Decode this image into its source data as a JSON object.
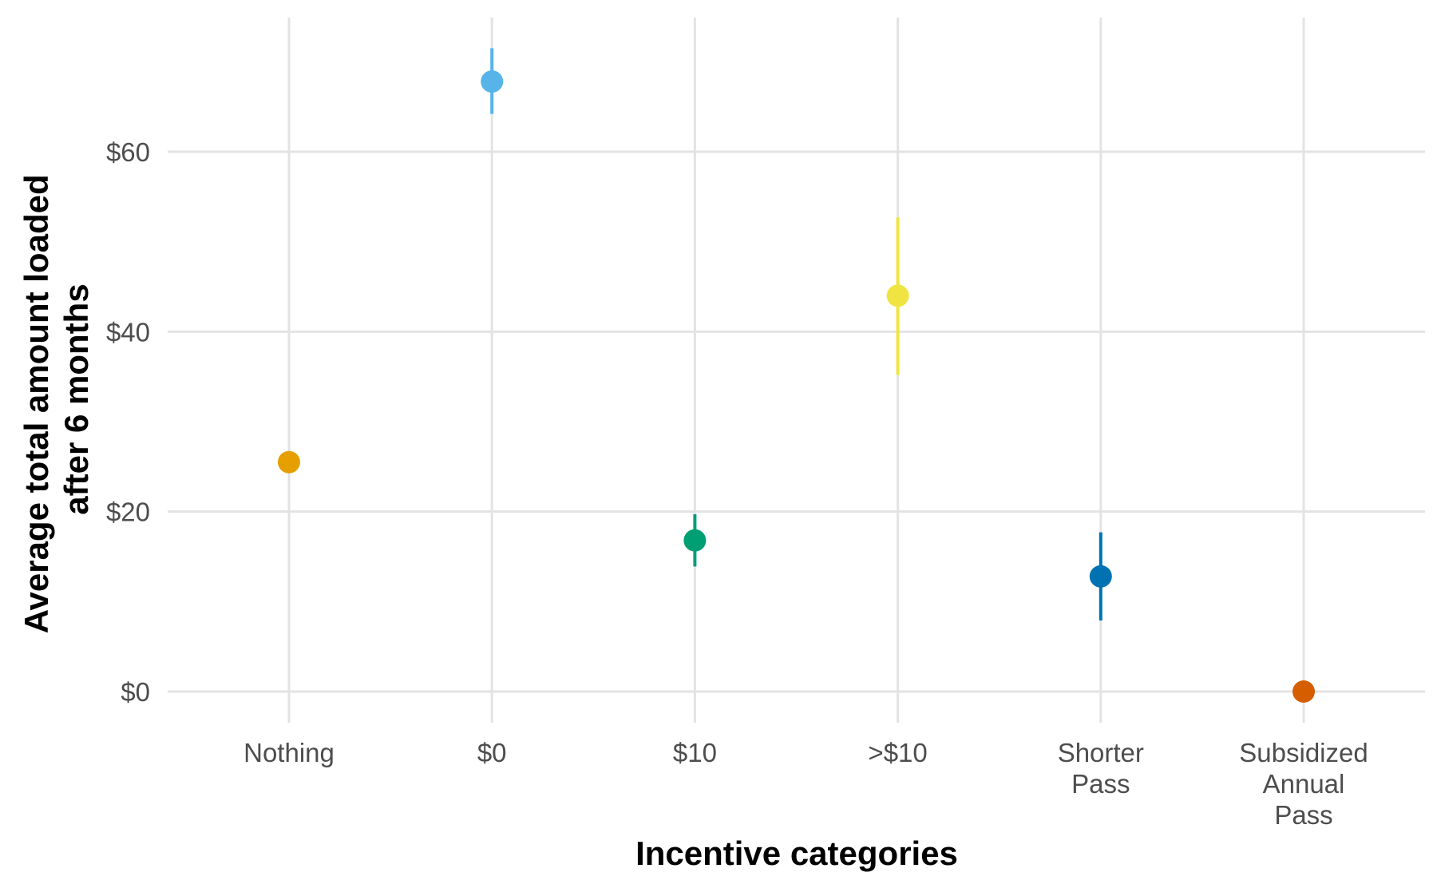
{
  "chart_data": {
    "type": "scatter",
    "title": "",
    "xlabel": "Incentive categories",
    "ylabel_lines": [
      "Average total amount loaded",
      "after 6 months"
    ],
    "categories": [
      [
        "Nothing"
      ],
      [
        "$0"
      ],
      [
        "$10"
      ],
      [
        ">$10"
      ],
      [
        "Shorter",
        "Pass"
      ],
      [
        "Subsidized",
        "Annual",
        "Pass"
      ]
    ],
    "ylim": [
      -3.5,
      75
    ],
    "yticks": [
      0,
      20,
      40,
      60
    ],
    "ytick_labels": [
      "$0",
      "$20",
      "$40",
      "$60"
    ],
    "points": [
      {
        "category": "Nothing",
        "y": 25.5,
        "lower": null,
        "upper": null,
        "color": "#E69F00"
      },
      {
        "category": "$0",
        "y": 67.8,
        "lower": 64.2,
        "upper": 71.5,
        "color": "#56B4E9"
      },
      {
        "category": "$10",
        "y": 16.8,
        "lower": 13.9,
        "upper": 19.7,
        "color": "#009E73"
      },
      {
        "category": ">$10",
        "y": 44.0,
        "lower": 35.2,
        "upper": 52.7,
        "color": "#F0E442"
      },
      {
        "category": "Shorter Pass",
        "y": 12.8,
        "lower": 7.9,
        "upper": 17.7,
        "color": "#0072B2"
      },
      {
        "category": "Subsidized Annual Pass",
        "y": 0.0,
        "lower": null,
        "upper": null,
        "color": "#D55E00"
      }
    ],
    "grid": true,
    "legend": "none"
  }
}
